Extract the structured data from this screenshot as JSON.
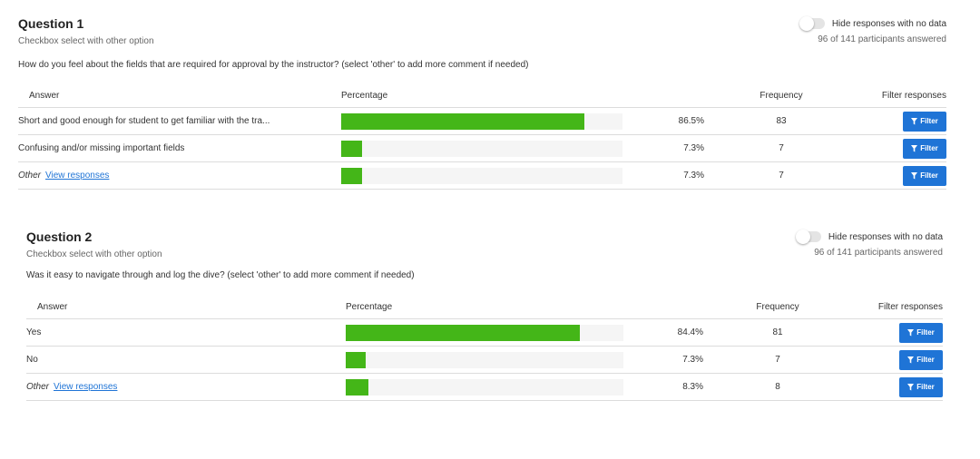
{
  "questions": [
    {
      "title": "Question 1",
      "subtitle": "Checkbox select with other option",
      "prompt": "How do you feel about the fields that are required for approval by the instructor? (select 'other' to add more comment if needed)",
      "toggle_label": "Hide responses with no data",
      "toggle_on": false,
      "answered": "96 of 141 participants answered",
      "columns": {
        "answer": "Answer",
        "percentage": "Percentage",
        "frequency": "Frequency",
        "filter": "Filter responses"
      },
      "rows": [
        {
          "answer": "Short and good enough for student to get familiar with the tra...",
          "percent_text": "86.5%",
          "percent": 86.5,
          "frequency": "83",
          "filter_label": "Filter"
        },
        {
          "answer": "Confusing and/or missing important fields",
          "percent_text": "7.3%",
          "percent": 7.3,
          "frequency": "7",
          "filter_label": "Filter"
        },
        {
          "answer": "Other",
          "link": "View responses",
          "percent_text": "7.3%",
          "percent": 7.3,
          "frequency": "7",
          "filter_label": "Filter"
        }
      ]
    },
    {
      "title": "Question 2",
      "subtitle": "Checkbox select with other option",
      "prompt": "Was it easy to navigate through and log the dive? (select 'other' to add more comment if needed)",
      "toggle_label": "Hide responses with no data",
      "toggle_on": false,
      "answered": "96 of 141 participants answered",
      "columns": {
        "answer": "Answer",
        "percentage": "Percentage",
        "frequency": "Frequency",
        "filter": "Filter responses"
      },
      "rows": [
        {
          "answer": "Yes",
          "percent_text": "84.4%",
          "percent": 84.4,
          "frequency": "81",
          "filter_label": "Filter"
        },
        {
          "answer": "No",
          "percent_text": "7.3%",
          "percent": 7.3,
          "frequency": "7",
          "filter_label": "Filter"
        },
        {
          "answer": "Other",
          "link": "View responses",
          "percent_text": "8.3%",
          "percent": 8.3,
          "frequency": "8",
          "filter_label": "Filter"
        }
      ]
    }
  ],
  "colors": {
    "bar": "#44b618",
    "track": "#f5f5f5",
    "button": "#1f74d6",
    "link": "#1f74d6"
  },
  "icons": {
    "filter": "funnel-icon"
  }
}
